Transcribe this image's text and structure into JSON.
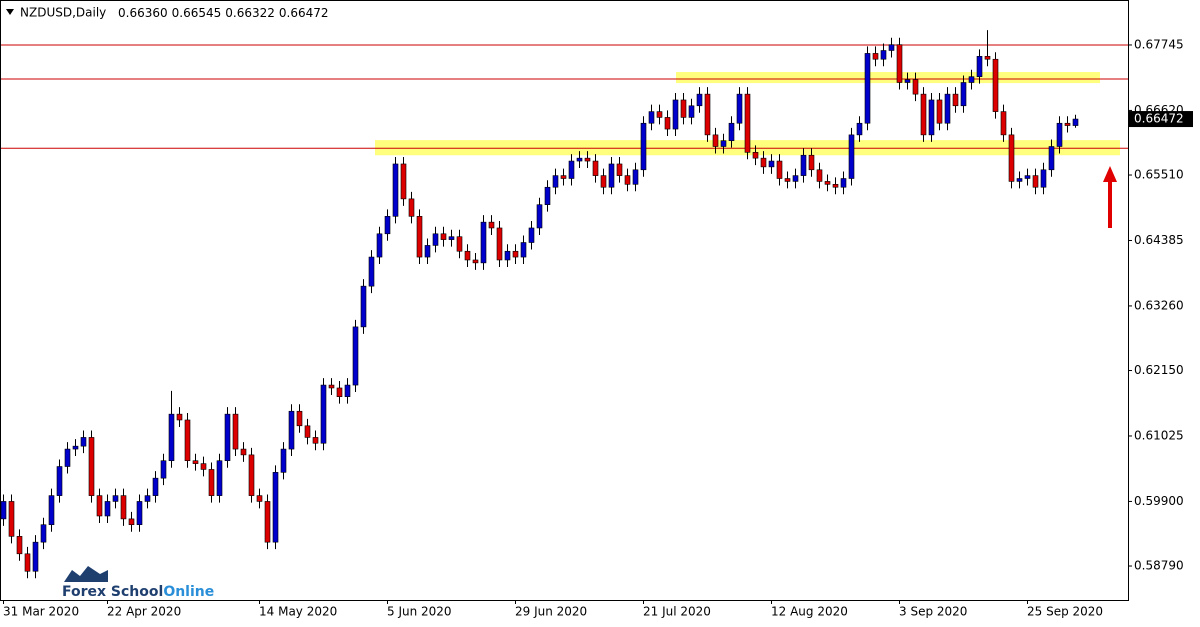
{
  "chart_data": {
    "type": "candlestick",
    "title": "NZDUSD,Daily",
    "ohlc_labels": [
      "0.66360",
      "0.66545",
      "0.66322",
      "0.66472"
    ],
    "logo": [
      "Forex School",
      "Online"
    ],
    "categories": [
      "31 Mar 2020",
      null,
      null,
      null,
      null,
      null,
      null,
      null,
      null,
      null,
      null,
      null,
      null,
      "22 Apr 2020",
      null,
      null,
      null,
      null,
      null,
      null,
      null,
      null,
      null,
      null,
      null,
      null,
      null,
      null,
      null,
      null,
      null,
      null,
      "14 May 2020",
      null,
      null,
      null,
      null,
      null,
      null,
      null,
      null,
      null,
      null,
      null,
      null,
      null,
      null,
      null,
      "5 Jun 2020",
      null,
      null,
      null,
      null,
      null,
      null,
      null,
      null,
      null,
      null,
      null,
      null,
      null,
      null,
      null,
      "29 Jun 2020",
      null,
      null,
      null,
      null,
      null,
      null,
      null,
      null,
      null,
      null,
      null,
      null,
      null,
      null,
      null,
      "21 Jul 2020",
      null,
      null,
      null,
      null,
      null,
      null,
      null,
      null,
      null,
      null,
      null,
      null,
      null,
      null,
      null,
      "12 Aug 2020",
      null,
      null,
      null,
      null,
      null,
      null,
      null,
      null,
      null,
      null,
      null,
      null,
      null,
      null,
      null,
      "3 Sep 2020",
      null,
      null,
      null,
      null,
      null,
      null,
      null,
      null,
      null,
      null,
      null,
      null,
      null,
      null,
      null,
      "25 Sep 2020",
      null,
      null,
      null,
      null,
      null,
      null
    ],
    "open": [
      0.596,
      0.599,
      0.593,
      0.59,
      0.587,
      0.592,
      0.595,
      0.6,
      0.605,
      0.608,
      0.6085,
      0.61,
      0.6,
      0.5965,
      0.599,
      0.6,
      0.596,
      0.595,
      0.599,
      0.6,
      0.603,
      0.606,
      0.614,
      0.613,
      0.606,
      0.6055,
      0.6045,
      0.6,
      0.606,
      0.614,
      0.608,
      0.607,
      0.6,
      0.599,
      0.592,
      0.604,
      0.608,
      0.6145,
      0.612,
      0.61,
      0.609,
      0.619,
      0.6185,
      0.617,
      0.619,
      0.629,
      0.636,
      0.641,
      0.645,
      0.648,
      0.657,
      0.651,
      0.648,
      0.641,
      0.643,
      0.645,
      0.644,
      0.6445,
      0.642,
      0.6405,
      0.64,
      0.647,
      0.646,
      0.6405,
      0.642,
      0.641,
      0.6435,
      0.646,
      0.65,
      0.653,
      0.655,
      0.6545,
      0.6575,
      0.658,
      0.6575,
      0.655,
      0.653,
      0.657,
      0.655,
      0.6535,
      0.656,
      0.664,
      0.666,
      0.665,
      0.663,
      0.668,
      0.665,
      0.667,
      0.669,
      0.662,
      0.66,
      0.661,
      0.664,
      0.669,
      0.659,
      0.658,
      0.6565,
      0.6575,
      0.6545,
      0.654,
      0.655,
      0.6585,
      0.656,
      0.654,
      0.6535,
      0.653,
      0.6545,
      0.662,
      0.664,
      0.676,
      0.675,
      0.6765,
      0.6775,
      0.671,
      0.6715,
      0.669,
      0.662,
      0.668,
      0.664,
      0.669,
      0.667,
      0.671,
      0.672,
      0.6755,
      0.675,
      0.666,
      0.662,
      0.654,
      0.6545,
      0.655,
      0.653,
      0.656,
      0.66,
      0.664,
      0.6636
    ],
    "high": [
      0.6002,
      0.6002,
      0.5942,
      0.5912,
      0.5932,
      0.5962,
      0.6012,
      0.6062,
      0.6092,
      0.6097,
      0.6112,
      0.6112,
      0.6012,
      0.6002,
      0.6012,
      0.6012,
      0.5972,
      0.6002,
      0.6012,
      0.6042,
      0.6072,
      0.618,
      0.6152,
      0.6142,
      0.6072,
      0.6067,
      0.6057,
      0.6072,
      0.6152,
      0.6152,
      0.6092,
      0.6082,
      0.6012,
      0.6002,
      0.6052,
      0.6092,
      0.6157,
      0.6157,
      0.6132,
      0.6112,
      0.6202,
      0.6202,
      0.6197,
      0.6202,
      0.6302,
      0.6372,
      0.6422,
      0.6462,
      0.6492,
      0.6582,
      0.6582,
      0.6522,
      0.6492,
      0.6442,
      0.6462,
      0.6462,
      0.6457,
      0.6457,
      0.6432,
      0.6417,
      0.6482,
      0.6482,
      0.6472,
      0.6432,
      0.6432,
      0.6447,
      0.6472,
      0.6512,
      0.6542,
      0.6562,
      0.6562,
      0.6587,
      0.6592,
      0.6592,
      0.6587,
      0.6562,
      0.6582,
      0.6582,
      0.6562,
      0.6572,
      0.6652,
      0.6672,
      0.6672,
      0.6662,
      0.6692,
      0.6692,
      0.6682,
      0.6702,
      0.6702,
      0.6632,
      0.6622,
      0.6652,
      0.6702,
      0.6702,
      0.6602,
      0.6592,
      0.6587,
      0.6587,
      0.6557,
      0.6562,
      0.6597,
      0.6597,
      0.6572,
      0.6552,
      0.6547,
      0.6557,
      0.6632,
      0.6652,
      0.6772,
      0.6772,
      0.6777,
      0.6787,
      0.6787,
      0.6727,
      0.6727,
      0.6702,
      0.6692,
      0.6692,
      0.6702,
      0.6702,
      0.6722,
      0.6732,
      0.6767,
      0.68,
      0.6762,
      0.6672,
      0.6632,
      0.6557,
      0.6562,
      0.6562,
      0.6572,
      0.6612,
      0.6652,
      0.6652,
      0.66545
    ],
    "low": [
      0.5948,
      0.5918,
      0.5888,
      0.5858,
      0.5858,
      0.5908,
      0.5938,
      0.5988,
      0.6038,
      0.6068,
      0.6073,
      0.5988,
      0.5953,
      0.5953,
      0.5978,
      0.5948,
      0.5938,
      0.5938,
      0.5978,
      0.5988,
      0.6018,
      0.6048,
      0.6118,
      0.6048,
      0.6043,
      0.6033,
      0.5988,
      0.5988,
      0.6048,
      0.6068,
      0.6058,
      0.5988,
      0.5978,
      0.5908,
      0.5908,
      0.6028,
      0.6068,
      0.6108,
      0.6088,
      0.6078,
      0.6078,
      0.6173,
      0.6158,
      0.6158,
      0.6178,
      0.6278,
      0.6348,
      0.6398,
      0.6438,
      0.6468,
      0.6498,
      0.6468,
      0.6398,
      0.6398,
      0.6418,
      0.6428,
      0.6428,
      0.6408,
      0.6393,
      0.6388,
      0.6388,
      0.6448,
      0.6393,
      0.6393,
      0.6398,
      0.6398,
      0.6423,
      0.6448,
      0.6488,
      0.6518,
      0.6533,
      0.6533,
      0.6563,
      0.6563,
      0.6538,
      0.6518,
      0.6518,
      0.6538,
      0.6523,
      0.6523,
      0.6548,
      0.6628,
      0.6638,
      0.6618,
      0.6618,
      0.6638,
      0.6638,
      0.6658,
      0.6608,
      0.6588,
      0.6588,
      0.6598,
      0.6628,
      0.6578,
      0.6568,
      0.6553,
      0.6553,
      0.6533,
      0.6528,
      0.6528,
      0.6538,
      0.6548,
      0.6528,
      0.6523,
      0.6518,
      0.6518,
      0.6533,
      0.6608,
      0.6628,
      0.6738,
      0.6738,
      0.6753,
      0.6698,
      0.6698,
      0.6678,
      0.6608,
      0.6608,
      0.6628,
      0.6628,
      0.6658,
      0.6658,
      0.6698,
      0.6708,
      0.6738,
      0.6648,
      0.6608,
      0.6528,
      0.6528,
      0.6533,
      0.6518,
      0.6518,
      0.6548,
      0.6588,
      0.6624,
      0.66322
    ],
    "close": [
      0.599,
      0.593,
      0.59,
      0.587,
      0.592,
      0.595,
      0.6,
      0.605,
      0.608,
      0.6085,
      0.61,
      0.6,
      0.5965,
      0.599,
      0.6,
      0.596,
      0.595,
      0.599,
      0.6,
      0.603,
      0.606,
      0.614,
      0.613,
      0.606,
      0.6055,
      0.6045,
      0.6,
      0.606,
      0.614,
      0.608,
      0.607,
      0.6,
      0.599,
      0.592,
      0.604,
      0.608,
      0.6145,
      0.612,
      0.61,
      0.609,
      0.619,
      0.6185,
      0.617,
      0.619,
      0.629,
      0.636,
      0.641,
      0.645,
      0.648,
      0.657,
      0.651,
      0.648,
      0.641,
      0.643,
      0.645,
      0.644,
      0.6445,
      0.642,
      0.6405,
      0.64,
      0.647,
      0.646,
      0.6405,
      0.642,
      0.641,
      0.6435,
      0.646,
      0.65,
      0.653,
      0.655,
      0.6545,
      0.6575,
      0.658,
      0.6575,
      0.655,
      0.653,
      0.657,
      0.655,
      0.6535,
      0.656,
      0.664,
      0.666,
      0.665,
      0.663,
      0.668,
      0.665,
      0.667,
      0.669,
      0.662,
      0.66,
      0.661,
      0.664,
      0.669,
      0.659,
      0.658,
      0.6565,
      0.6575,
      0.6545,
      0.654,
      0.655,
      0.6585,
      0.656,
      0.654,
      0.6535,
      0.653,
      0.6545,
      0.662,
      0.664,
      0.676,
      0.675,
      0.6765,
      0.6775,
      0.671,
      0.6715,
      0.669,
      0.662,
      0.668,
      0.664,
      0.669,
      0.667,
      0.671,
      0.672,
      0.6755,
      0.675,
      0.666,
      0.662,
      0.654,
      0.6545,
      0.655,
      0.653,
      0.656,
      0.66,
      0.664,
      0.6636,
      0.66472
    ],
    "up_color": "#0000cd",
    "down_color": "#dd0000",
    "levels": [
      0.67745,
      0.6716,
      0.6597
    ],
    "level_color": "#cc0000",
    "zones": [
      [
        0.6728,
        0.6709
      ],
      [
        0.6611,
        0.6585
      ]
    ],
    "zone_color": "#ffff66",
    "ylim": [
      0.58206,
      0.68518
    ],
    "yticks": [
      {
        "value": 0.5879,
        "label": "0.58790"
      },
      {
        "value": 0.599,
        "label": "0.59900"
      },
      0.61025,
      {
        "value": 0.6215,
        "label": "0.62150"
      },
      {
        "value": 0.6326,
        "label": "0.63260"
      },
      0.64385,
      {
        "value": 0.6551,
        "label": "0.65510"
      },
      {
        "value": 0.6662,
        "label": "0.66620"
      },
      0.67745
    ]
  }
}
